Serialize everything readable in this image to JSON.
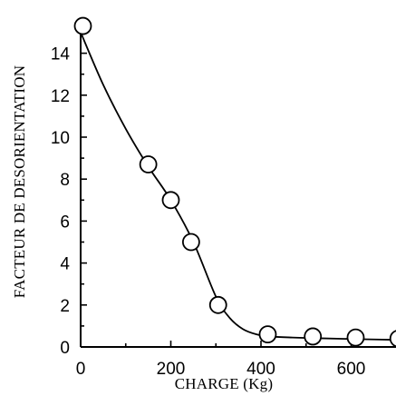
{
  "chart_data": {
    "type": "scatter",
    "title": "",
    "xlabel": "CHARGE (Kg)",
    "ylabel": "FACTEUR DE DESORIENTATION",
    "xlim": [
      0,
      720
    ],
    "ylim": [
      0,
      15.5
    ],
    "xticks": [
      0,
      200,
      400,
      600
    ],
    "xtick_labels": [
      "0",
      "200",
      "400",
      "600"
    ],
    "yticks": [
      0,
      2,
      4,
      6,
      8,
      10,
      12,
      14
    ],
    "ytick_labels": [
      "0",
      "2",
      "4",
      "6",
      "8",
      "10",
      "12",
      "14"
    ],
    "grid": false,
    "legend": "none",
    "series": [
      {
        "marker": "open-circle",
        "x": [
          5,
          150,
          200,
          245,
          305,
          415,
          515,
          610,
          705
        ],
        "y": [
          15.3,
          8.7,
          7.0,
          5.0,
          2.0,
          0.6,
          0.5,
          0.45,
          0.4
        ]
      }
    ],
    "fit_curve": {
      "x": [
        0,
        50,
        100,
        150,
        200,
        250,
        300,
        330,
        360,
        390,
        420,
        470,
        520,
        600,
        720
      ],
      "y": [
        15.0,
        12.5,
        10.4,
        8.6,
        7.0,
        5.0,
        2.4,
        1.4,
        0.85,
        0.6,
        0.5,
        0.45,
        0.42,
        0.38,
        0.33
      ]
    },
    "colors": {
      "ink": "#000000",
      "background": "#ffffff"
    }
  }
}
